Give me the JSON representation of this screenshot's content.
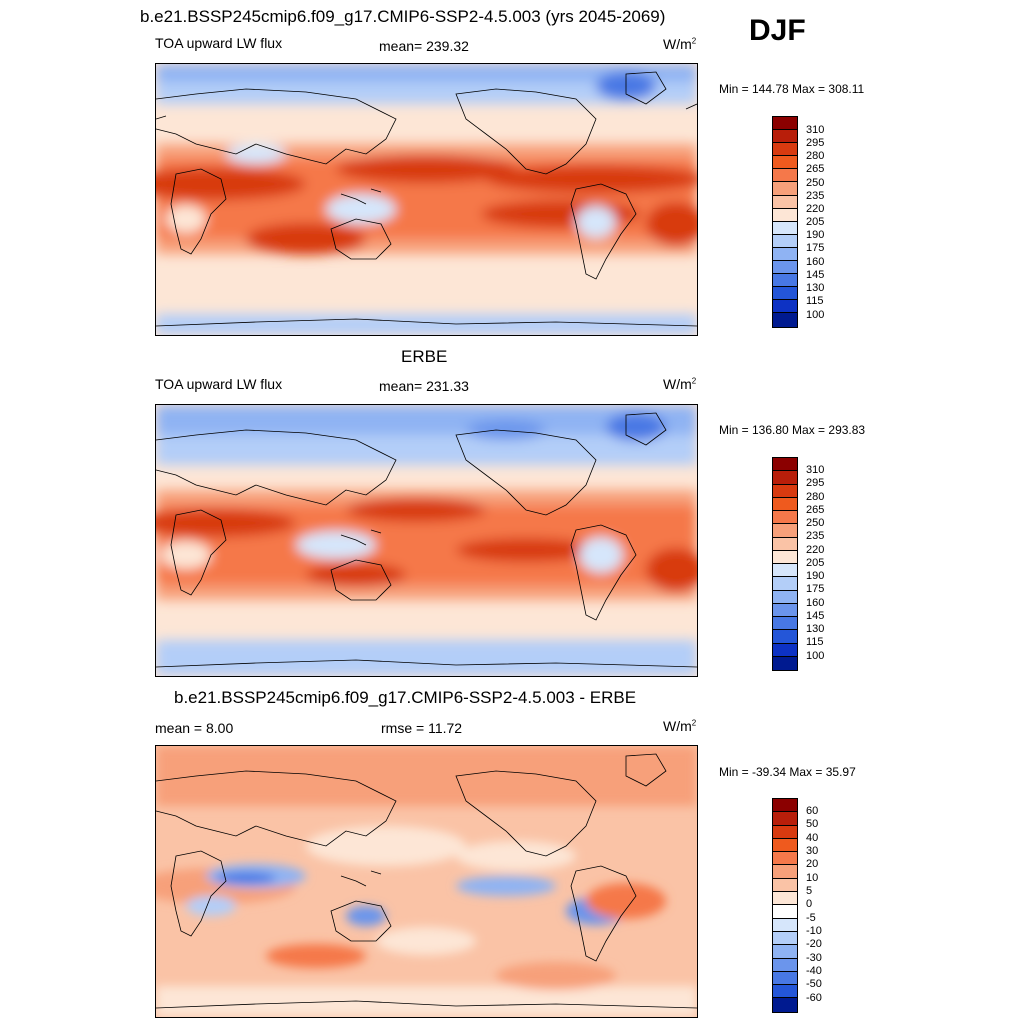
{
  "header": {
    "season": "DJF"
  },
  "panels": [
    {
      "title": "b.e21.BSSP245cmip6.f09_g17.CMIP6-SSP2-4.5.003 (yrs 2045-2069)",
      "left_label": "TOA upward LW flux",
      "center_label": "mean= 239.32",
      "units_base": "W/m",
      "units_exp": "2",
      "minmax": "Min = 144.78 Max = 308.11"
    },
    {
      "title": "ERBE",
      "left_label": "TOA upward LW flux",
      "center_label": "mean= 231.33",
      "units_base": "W/m",
      "units_exp": "2",
      "minmax": "Min = 136.80 Max = 293.83"
    },
    {
      "title": "b.e21.BSSP245cmip6.f09_g17.CMIP6-SSP2-4.5.003 - ERBE",
      "left_label": "mean =   8.00",
      "center_label": "rmse =  11.72",
      "units_base": "W/m",
      "units_exp": "2",
      "minmax": "Min = -39.34 Max =  35.97"
    }
  ],
  "colorbars": {
    "flux": {
      "labels": [
        "310",
        "295",
        "280",
        "265",
        "250",
        "235",
        "220",
        "205",
        "190",
        "175",
        "160",
        "145",
        "130",
        "115",
        "100"
      ],
      "colors": [
        "#8b0000",
        "#b81e0a",
        "#d83a10",
        "#ef5a1e",
        "#f5784a",
        "#f7a07a",
        "#fac3a6",
        "#fde6d6",
        "#d6e6fb",
        "#b3cef8",
        "#8fb3f3",
        "#6b95ec",
        "#4878e4",
        "#2456d8",
        "#0d32c4",
        "#001a90"
      ]
    },
    "diff": {
      "labels": [
        "60",
        "50",
        "40",
        "30",
        "20",
        "10",
        "5",
        "0",
        "-5",
        "-10",
        "-20",
        "-30",
        "-40",
        "-50",
        "-60"
      ],
      "colors": [
        "#8b0000",
        "#b81e0a",
        "#d83a10",
        "#ef5a1e",
        "#f5784a",
        "#f7a07a",
        "#fac3a6",
        "#fde6d6",
        "#ffffff",
        "#d6e6fb",
        "#b3cef8",
        "#8fb3f3",
        "#6b95ec",
        "#4878e4",
        "#2456d8",
        "#001a90"
      ]
    }
  }
}
